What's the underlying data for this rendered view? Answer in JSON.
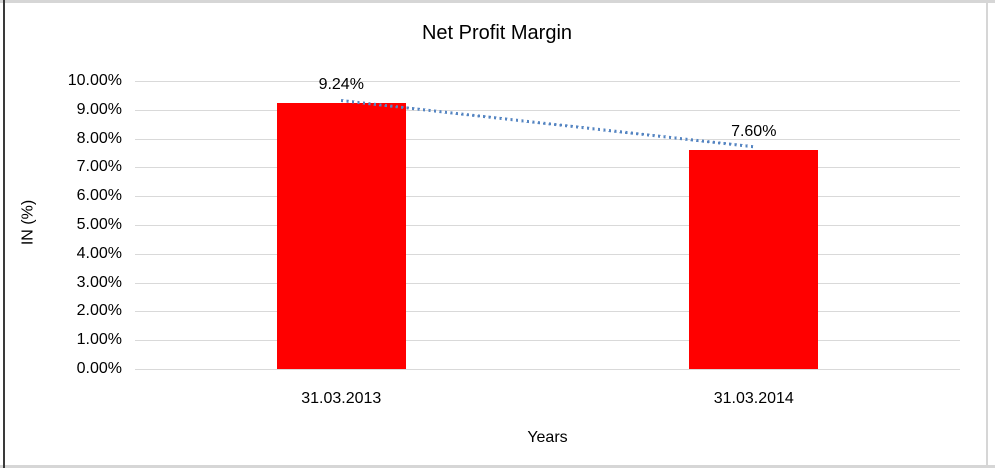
{
  "chart_data": {
    "type": "bar",
    "title": "Net Profit Margin",
    "categories": [
      "31.03.2013",
      "31.03.2014"
    ],
    "values": [
      9.24,
      7.6
    ],
    "value_labels": [
      "9.24%",
      "7.60%"
    ],
    "xlabel": "Years",
    "ylabel": "IN (%)",
    "ylim": [
      0,
      10
    ],
    "ytick_step": 1,
    "ytick_labels": [
      "0.00%",
      "1.00%",
      "2.00%",
      "3.00%",
      "4.00%",
      "5.00%",
      "6.00%",
      "7.00%",
      "8.00%",
      "9.00%",
      "10.00%"
    ],
    "grid": true,
    "legend": "none",
    "bar_color": "#ff0000",
    "gridline_color": "#d9d9d9",
    "trendline": {
      "style": "dotted",
      "color": "#5585c2"
    }
  }
}
